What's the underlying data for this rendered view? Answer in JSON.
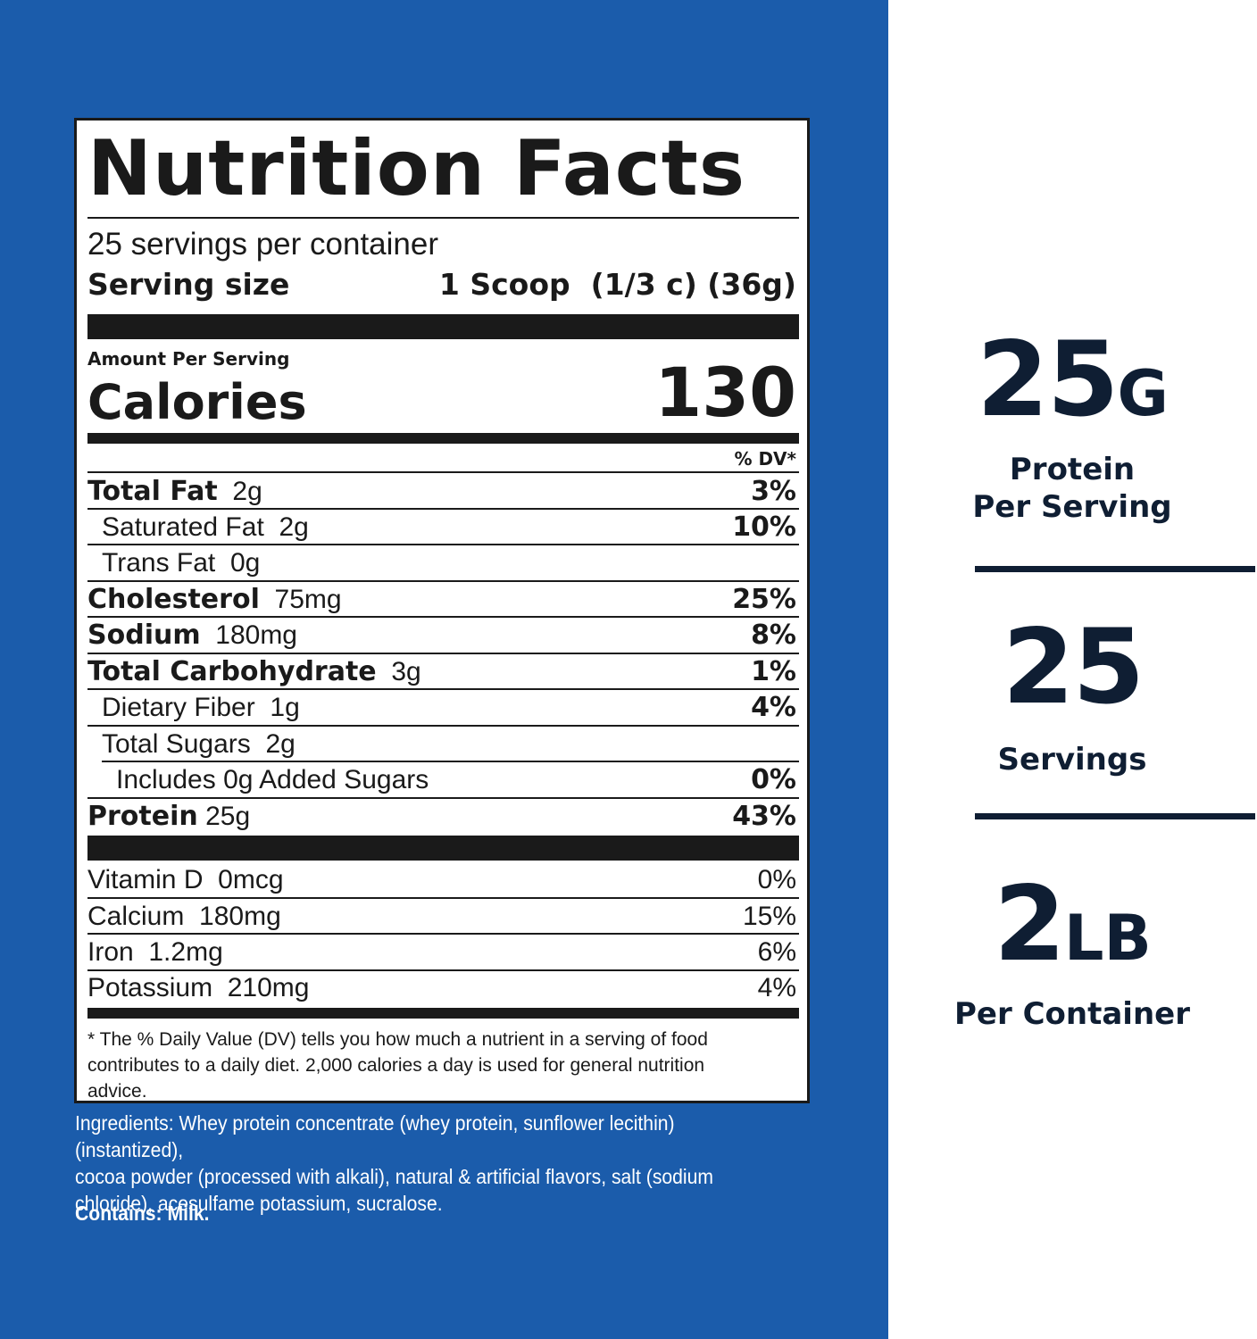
{
  "nutrition": {
    "title": "Nutrition Facts",
    "servings_per_container": "25 servings per container",
    "serving_size_label": "Serving size",
    "serving_size_value": "1 Scoop  (1/3 c) (36g)",
    "amount_per_serving": "Amount Per Serving",
    "calories_label": "Calories",
    "calories_value": "130",
    "dv_header": "% DV*",
    "nutrients": [
      {
        "name": "Total Fat",
        "amount": "2g",
        "dv": "3%"
      },
      {
        "name": "Saturated Fat",
        "amount": "2g",
        "dv": "10%"
      },
      {
        "name": "Trans Fat",
        "amount": "0g",
        "dv": ""
      },
      {
        "name": "Cholesterol",
        "amount": "75mg",
        "dv": "25%"
      },
      {
        "name": "Sodium",
        "amount": "180mg",
        "dv": "8%"
      },
      {
        "name": "Total Carbohydrate",
        "amount": "3g",
        "dv": "1%"
      },
      {
        "name": "Dietary Fiber",
        "amount": "1g",
        "dv": "4%"
      },
      {
        "name": "Total Sugars",
        "amount": "2g",
        "dv": ""
      },
      {
        "name": "Includes 0g Added Sugars",
        "amount": "",
        "dv": "0%"
      },
      {
        "name": "Protein",
        "amount": "25g",
        "dv": "43%"
      }
    ],
    "vitamins": [
      {
        "name": "Vitamin D",
        "amount": "0mcg",
        "dv": "0%"
      },
      {
        "name": "Calcium",
        "amount": "180mg",
        "dv": "15%"
      },
      {
        "name": "Iron",
        "amount": "1.2mg",
        "dv": "6%"
      },
      {
        "name": "Potassium",
        "amount": "210mg",
        "dv": "4%"
      }
    ],
    "footnote_lines": [
      "* The % Daily Value (DV) tells you how much a nutrient in a serving of food",
      "contributes to a daily diet. 2,000 calories a day is used for general nutrition",
      "advice."
    ]
  },
  "ingredients_lines": [
    "Ingredients: Whey protein concentrate (whey protein, sunflower lecithin)(instantized),",
    "cocoa powder (processed with alkali), natural & artificial flavors, salt (sodium",
    "chloride), acesulfame potassium, sucralose."
  ],
  "contains": "Contains: Milk.",
  "stats": {
    "protein_value": "25",
    "protein_unit": "G",
    "protein_label_1": "Protein",
    "protein_label_2": "Per Serving",
    "servings_value": "25",
    "servings_label": "Servings",
    "weight_value": "2",
    "weight_unit": "LB",
    "weight_label": "Per Container"
  },
  "colors": {
    "panel_blue": "#1b5cab",
    "label_ink": "#1a1a1a",
    "stat_navy": "#0f1e33"
  }
}
